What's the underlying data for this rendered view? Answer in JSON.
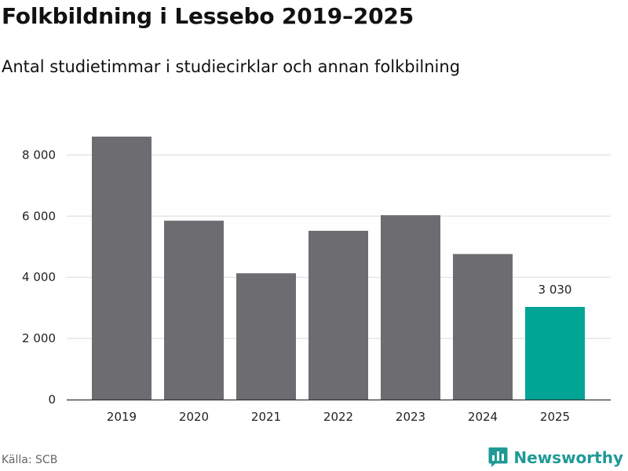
{
  "title": "Folkbildning i Lessebo 2019–2025",
  "subtitle": "Antal studietimmar i studiecirklar och annan folkbilning",
  "source": "Källa: SCB",
  "brand": {
    "name": "Newsworthy",
    "icon": "bar-chart-logo-icon"
  },
  "colors": {
    "bar": "#6d6c71",
    "highlight": "#00a596",
    "grid": "#d9d9d9",
    "axis": "#333333",
    "brand": "#1f9a96"
  },
  "chart_data": {
    "type": "bar",
    "title": "Folkbildning i Lessebo 2019–2025",
    "subtitle": "Antal studietimmar i studiecirklar och annan folkbilning",
    "xlabel": "",
    "ylabel": "",
    "categories": [
      "2019",
      "2020",
      "2021",
      "2022",
      "2023",
      "2024",
      "2025"
    ],
    "values": [
      8600,
      5850,
      4130,
      5520,
      6030,
      4760,
      3030
    ],
    "highlight_index": 6,
    "data_labels": [
      {
        "index": 6,
        "text": "3 030"
      }
    ],
    "ylim": [
      0,
      9000
    ],
    "yticks": [
      0,
      2000,
      4000,
      6000,
      8000
    ],
    "ytick_labels": [
      "0",
      "2 000",
      "4 000",
      "6 000",
      "8 000"
    ],
    "grid": true,
    "legend": "none"
  }
}
